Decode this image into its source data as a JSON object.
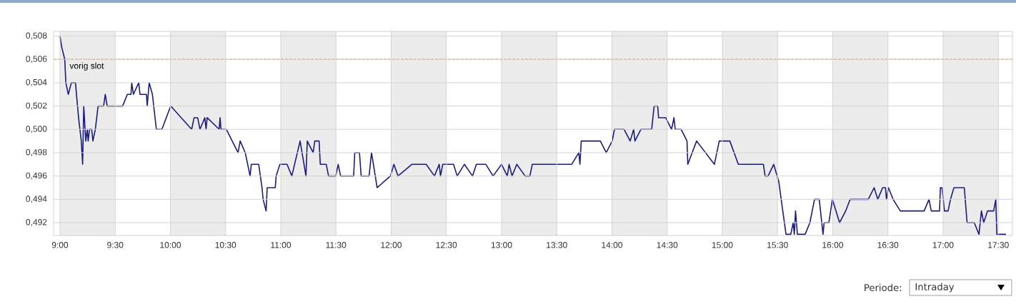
{
  "chart_data": {
    "type": "line",
    "grid": true,
    "marker": "none",
    "x": [
      9.0,
      9.008,
      9.017,
      9.043,
      9.053,
      9.075,
      9.103,
      9.14,
      9.168,
      9.193,
      9.205,
      9.215,
      9.233,
      9.247,
      9.255,
      9.267,
      9.287,
      9.298,
      9.32,
      9.345,
      9.395,
      9.41,
      9.427,
      9.567,
      9.61,
      9.643,
      9.65,
      9.665,
      9.713,
      9.725,
      9.783,
      9.79,
      9.808,
      9.837,
      9.873,
      9.923,
      10.003,
      10.193,
      10.215,
      10.247,
      10.268,
      10.312,
      10.323,
      10.333,
      10.442,
      10.45,
      10.458,
      10.507,
      10.613,
      10.632,
      10.678,
      10.722,
      10.733,
      10.8,
      10.83,
      10.84,
      10.867,
      10.877,
      10.95,
      10.958,
      10.992,
      11.057,
      11.1,
      11.175,
      11.228,
      11.24,
      11.293,
      11.308,
      11.347,
      11.358,
      11.412,
      11.433,
      11.498,
      11.52,
      11.542,
      11.66,
      11.67,
      11.713,
      11.728,
      11.8,
      11.822,
      11.873,
      11.993,
      12.025,
      12.062,
      12.187,
      12.317,
      12.392,
      12.435,
      12.447,
      12.467,
      12.565,
      12.598,
      12.663,
      12.737,
      12.772,
      12.858,
      12.923,
      13.0,
      13.052,
      13.068,
      13.095,
      13.138,
      13.213,
      13.257,
      13.278,
      13.635,
      13.7,
      13.71,
      13.722,
      13.895,
      13.948,
      14.002,
      14.023,
      14.11,
      14.165,
      14.197,
      14.208,
      14.262,
      14.36,
      14.382,
      14.415,
      14.422,
      14.487,
      14.54,
      14.562,
      14.573,
      14.627,
      14.68,
      14.687,
      14.767,
      14.928,
      14.972,
      15.068,
      15.145,
      15.372,
      15.387,
      15.415,
      15.465,
      15.512,
      15.533,
      15.577,
      15.62,
      15.642,
      15.652,
      15.663,
      15.68,
      15.75,
      15.793,
      15.835,
      15.878,
      15.912,
      15.922,
      15.965,
      15.997,
      16.062,
      16.117,
      16.158,
      16.322,
      16.375,
      16.408,
      16.452,
      16.478,
      16.487,
      16.505,
      16.547,
      16.612,
      16.828,
      16.872,
      16.893,
      16.968,
      16.975,
      16.99,
      17.012,
      17.045,
      17.067,
      17.098,
      17.192,
      17.217,
      17.282,
      17.325,
      17.347,
      17.368,
      17.402,
      17.458,
      17.477,
      17.487,
      17.57
    ],
    "series": [
      {
        "color": "#1c1c7c",
        "values": [
          0.508,
          0.5075,
          0.507,
          0.506,
          0.504,
          0.503,
          0.504,
          0.504,
          0.501,
          0.499,
          0.497,
          0.502,
          0.499,
          0.5,
          0.499,
          0.5,
          0.5,
          0.499,
          0.5,
          0.502,
          0.502,
          0.503,
          0.502,
          0.502,
          0.503,
          0.503,
          0.504,
          0.503,
          0.504,
          0.503,
          0.503,
          0.502,
          0.504,
          0.503,
          0.5,
          0.5,
          0.502,
          0.5,
          0.501,
          0.501,
          0.5,
          0.501,
          0.5,
          0.501,
          0.5,
          0.501,
          0.5,
          0.5,
          0.498,
          0.499,
          0.498,
          0.496,
          0.497,
          0.497,
          0.495,
          0.494,
          0.493,
          0.495,
          0.495,
          0.496,
          0.497,
          0.497,
          0.496,
          0.499,
          0.496,
          0.499,
          0.498,
          0.499,
          0.499,
          0.497,
          0.497,
          0.496,
          0.496,
          0.497,
          0.496,
          0.496,
          0.498,
          0.498,
          0.496,
          0.496,
          0.498,
          0.495,
          0.496,
          0.497,
          0.496,
          0.497,
          0.497,
          0.496,
          0.497,
          0.496,
          0.497,
          0.497,
          0.496,
          0.497,
          0.496,
          0.497,
          0.497,
          0.496,
          0.497,
          0.496,
          0.497,
          0.496,
          0.497,
          0.496,
          0.496,
          0.497,
          0.497,
          0.498,
          0.497,
          0.499,
          0.499,
          0.498,
          0.499,
          0.5,
          0.5,
          0.499,
          0.5,
          0.499,
          0.5,
          0.5,
          0.502,
          0.502,
          0.501,
          0.501,
          0.5,
          0.501,
          0.5,
          0.5,
          0.499,
          0.497,
          0.499,
          0.497,
          0.499,
          0.499,
          0.497,
          0.497,
          0.496,
          0.496,
          0.497,
          0.4955,
          0.494,
          0.491,
          0.491,
          0.492,
          0.491,
          0.493,
          0.491,
          0.491,
          0.492,
          0.494,
          0.494,
          0.491,
          0.492,
          0.492,
          0.494,
          0.492,
          0.493,
          0.494,
          0.494,
          0.495,
          0.494,
          0.495,
          0.495,
          0.494,
          0.495,
          0.494,
          0.493,
          0.493,
          0.494,
          0.493,
          0.493,
          0.495,
          0.495,
          0.493,
          0.493,
          0.494,
          0.495,
          0.495,
          0.492,
          0.492,
          0.491,
          0.493,
          0.492,
          0.493,
          0.493,
          0.494,
          0.491,
          0.491
        ]
      }
    ],
    "xlim": [
      8.942,
      17.628
    ],
    "ylim": [
      0.4909,
      0.5084
    ],
    "xticks": [
      {
        "value": 9,
        "label": "9:00"
      },
      {
        "value": 9.5,
        "label": "9:30"
      },
      {
        "value": 10,
        "label": "10:00"
      },
      {
        "value": 10.5,
        "label": "10:30"
      },
      {
        "value": 11,
        "label": "11:00"
      },
      {
        "value": 11.5,
        "label": "11:30"
      },
      {
        "value": 12,
        "label": "12:00"
      },
      {
        "value": 12.5,
        "label": "12:30"
      },
      {
        "value": 13,
        "label": "13:00"
      },
      {
        "value": 13.5,
        "label": "13:30"
      },
      {
        "value": 14,
        "label": "14:00"
      },
      {
        "value": 14.5,
        "label": "14:30"
      },
      {
        "value": 15,
        "label": "15:00"
      },
      {
        "value": 15.5,
        "label": "15:30"
      },
      {
        "value": 16,
        "label": "16:00"
      },
      {
        "value": 16.5,
        "label": "16:30"
      },
      {
        "value": 17,
        "label": "17:00"
      },
      {
        "value": 17.5,
        "label": "17:30"
      }
    ],
    "yticks": [
      {
        "value": 0.492,
        "label": "0,492"
      },
      {
        "value": 0.494,
        "label": "0,494"
      },
      {
        "value": 0.496,
        "label": "0,496"
      },
      {
        "value": 0.498,
        "label": "0,498"
      },
      {
        "value": 0.5,
        "label": "0,500"
      },
      {
        "value": 0.502,
        "label": "0,502"
      },
      {
        "value": 0.504,
        "label": "0,504"
      },
      {
        "value": 0.506,
        "label": "0,506"
      },
      {
        "value": 0.508,
        "label": "0,508"
      }
    ],
    "ref_lines": [
      {
        "axis": "y",
        "value": 0.506,
        "label": "vorig slot",
        "color": "#f08c3c",
        "line_style": "dashed"
      }
    ],
    "bands": [
      {
        "axis": "x",
        "from": 9,
        "to": 9.5,
        "color": "#ececec"
      },
      {
        "axis": "x",
        "from": 10,
        "to": 10.5,
        "color": "#ececec"
      },
      {
        "axis": "x",
        "from": 11,
        "to": 11.5,
        "color": "#ececec"
      },
      {
        "axis": "x",
        "from": 12,
        "to": 12.5,
        "color": "#ececec"
      },
      {
        "axis": "x",
        "from": 13,
        "to": 13.5,
        "color": "#ececec"
      },
      {
        "axis": "x",
        "from": 14,
        "to": 14.5,
        "color": "#ececec"
      },
      {
        "axis": "x",
        "from": 15,
        "to": 15.5,
        "color": "#ececec"
      },
      {
        "axis": "x",
        "from": 16,
        "to": 16.5,
        "color": "#ececec"
      },
      {
        "axis": "x",
        "from": 17,
        "to": 17.5,
        "color": "#ececec"
      }
    ],
    "annotations": [
      "Periode:",
      "Intraday"
    ]
  }
}
